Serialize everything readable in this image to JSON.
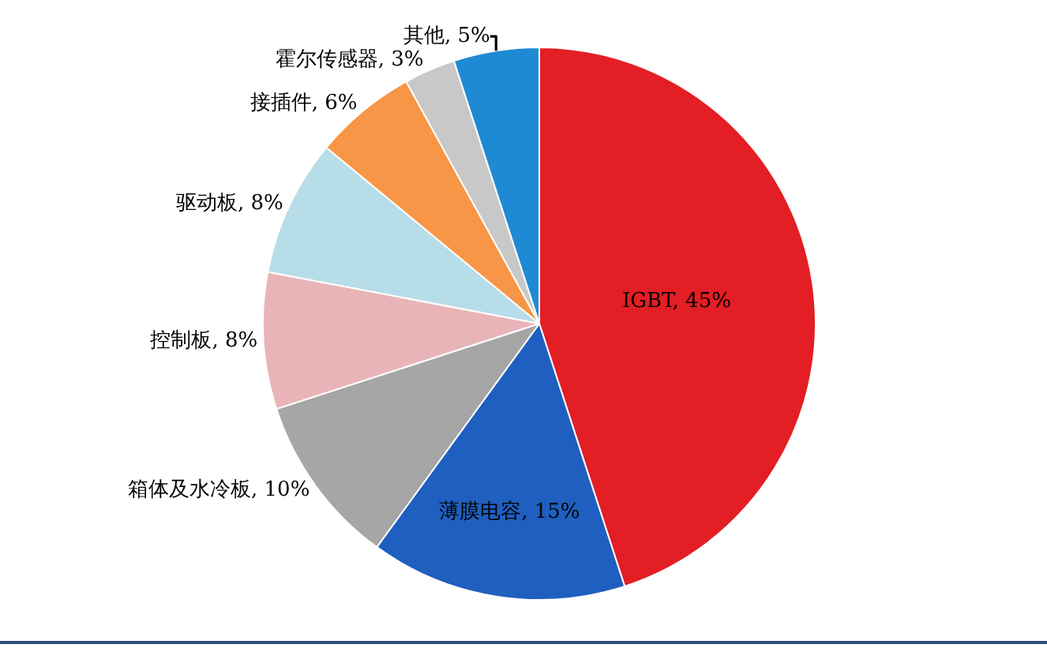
{
  "chart_data": {
    "type": "pie",
    "categories": [
      "IGBT",
      "薄膜电容",
      "箱体及水冷板",
      "控制板",
      "驱动板",
      "接插件",
      "霍尔传感器",
      "其他"
    ],
    "values": [
      45,
      15,
      10,
      8,
      8,
      6,
      3,
      5
    ],
    "value_labels": [
      "45%",
      "15%",
      "10%",
      "8%",
      "8%",
      "6%",
      "3%",
      "5%"
    ],
    "colors": [
      "#e31e24",
      "#1f5fbf",
      "#a6a6a6",
      "#e8b4b8",
      "#b7dde8",
      "#f79646",
      "#c8c8c8",
      "#1f8ad4"
    ],
    "legend": false
  }
}
